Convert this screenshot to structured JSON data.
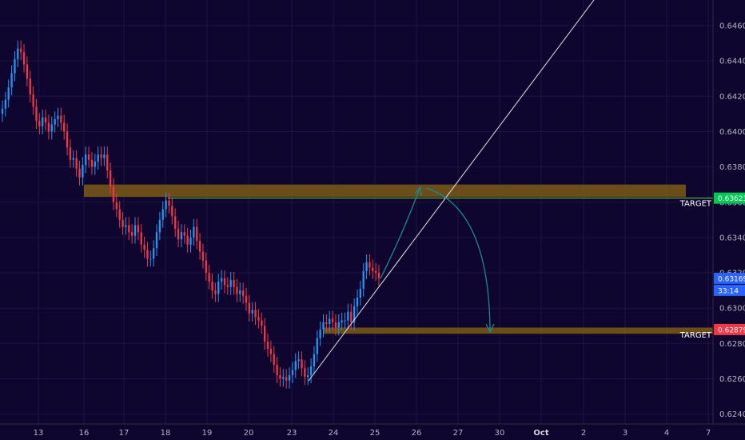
{
  "chart_data": {
    "type": "candlestick",
    "y_ticks": [
      "0.64600",
      "0.64400",
      "0.64200",
      "0.64000",
      "0.63800",
      "0.63600",
      "0.63400",
      "0.63200",
      "0.63000",
      "0.62800",
      "0.62600",
      "0.62400"
    ],
    "ylim": [
      0.6239,
      0.6468
    ],
    "x_ticks": [
      "13",
      "16",
      "17",
      "18",
      "19",
      "20",
      "23",
      "24",
      "25",
      "26",
      "27",
      "30",
      "Oct",
      "2",
      "3",
      "4",
      "7"
    ],
    "x_ticks_bold": [
      "Oct"
    ],
    "candles_close": [
      0.6413,
      0.6418,
      0.6425,
      0.6433,
      0.6441,
      0.6447,
      0.6445,
      0.6438,
      0.643,
      0.6421,
      0.6414,
      0.6406,
      0.6403,
      0.6408,
      0.6405,
      0.64,
      0.6404,
      0.6407,
      0.6409,
      0.6405,
      0.64,
      0.6391,
      0.6384,
      0.6385,
      0.6379,
      0.6374,
      0.6381,
      0.6387,
      0.6384,
      0.638,
      0.6383,
      0.6387,
      0.6385,
      0.6387,
      0.6378,
      0.6369,
      0.636,
      0.6356,
      0.635,
      0.6346,
      0.6347,
      0.6343,
      0.6341,
      0.6347,
      0.6343,
      0.6336,
      0.6333,
      0.6328,
      0.6328,
      0.6334,
      0.6343,
      0.635,
      0.6356,
      0.6361,
      0.6358,
      0.6352,
      0.6345,
      0.6339,
      0.6343,
      0.6341,
      0.6336,
      0.634,
      0.6346,
      0.6338,
      0.6332,
      0.6327,
      0.632,
      0.6315,
      0.631,
      0.6308,
      0.6315,
      0.6317,
      0.6313,
      0.6312,
      0.6316,
      0.6312,
      0.6308,
      0.631,
      0.6307,
      0.6303,
      0.6297,
      0.6299,
      0.6295,
      0.6293,
      0.629,
      0.6281,
      0.6277,
      0.6274,
      0.6268,
      0.6262,
      0.626,
      0.6261,
      0.6259,
      0.6262,
      0.6265,
      0.627,
      0.6271,
      0.6266,
      0.6261,
      0.6262,
      0.6267,
      0.6274,
      0.6283,
      0.6288,
      0.6292,
      0.6291,
      0.6294,
      0.6292,
      0.6289,
      0.6292,
      0.6293,
      0.6293,
      0.6298,
      0.6292,
      0.6301,
      0.6306,
      0.6311,
      0.6321,
      0.6326,
      0.6323,
      0.6321,
      0.632,
      0.6317
    ]
  },
  "annotations": {
    "resistance_zone": {
      "y_top": 0.637,
      "y_bottom": 0.6363
    },
    "support_zone": {
      "y_top": 0.6289,
      "y_bottom": 0.62855
    },
    "target_upper_label": "TARGET",
    "target_lower_label": "TARGET",
    "upper_level_line": 0.63623
  },
  "price_tags": {
    "upper_target": {
      "text": "0.63623",
      "value": 0.63623,
      "color": "#00c853"
    },
    "current_price": {
      "text": "0.63169",
      "value": 0.63169,
      "color": "#2962ff"
    },
    "countdown": {
      "text": "33:14",
      "color": "#2962ff"
    },
    "lower_target": {
      "text": "0.62879",
      "value": 0.62879,
      "color": "#f23645"
    }
  },
  "colors": {
    "background": "#0f0630",
    "bull": "#2196f3",
    "bear": "#f23645",
    "zone": "#7a5a14",
    "arrow": "#1a8a8a",
    "trendline": "#e6e6e6",
    "level_line": "#69d23c"
  }
}
